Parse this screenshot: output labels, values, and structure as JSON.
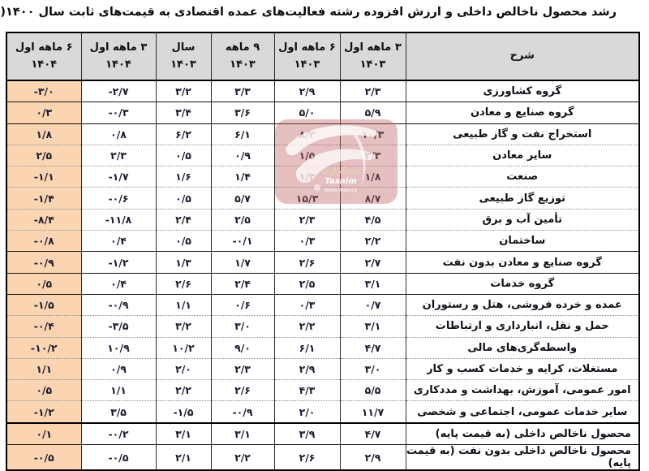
{
  "title": "رشد محصول ناخالص داخلی و ارزش افزوده رشته فعالیت‌های عمده اقتصادی به قیمت‌های ثابت سال ۱۴۰۰(درصد)",
  "table": {
    "description_header": "شرح",
    "columns": [
      {
        "line1": "۳ ماهه اول",
        "line2": "۱۴۰۳"
      },
      {
        "line1": "۶ ماهه اول",
        "line2": "۱۴۰۳"
      },
      {
        "line1": "۹ ماهه",
        "line2": "۱۴۰۳"
      },
      {
        "line1": "سال",
        "line2": "۱۴۰۳"
      },
      {
        "line1": "۳ ماهه اول",
        "line2": "۱۴۰۴"
      },
      {
        "line1": "۶ ماهه اول",
        "line2": "۱۴۰۴"
      }
    ],
    "header_bg": "#d9d9d9",
    "highlight_color": "#fbd5b2",
    "rows": [
      {
        "label": "گروه کشاورزی",
        "values": [
          "۲/۳",
          "۲/۹",
          "۳/۳",
          "۳/۲",
          "-۲/۷",
          "-۳/۰"
        ],
        "divider": "solid",
        "align": "center"
      },
      {
        "label": "گروه صنایع و معادن",
        "values": [
          "۵/۹",
          "۵/۰",
          "۳/۶",
          "۳/۴",
          "-۰/۳",
          "۰/۳"
        ],
        "divider": "solid",
        "align": "center"
      },
      {
        "label": "استخراج نفت و گاز طبیعی",
        "values": [
          "۱۰/۳",
          "۸/۲",
          "۶/۱",
          "۶/۲",
          "۰/۸",
          "۱/۸"
        ],
        "divider": "solid",
        "align": "center"
      },
      {
        "label": "سایر معادن",
        "values": [
          "۲/۳",
          "۱/۵",
          "۰/۹",
          "۰/۵",
          "۲/۳",
          "۲/۵"
        ],
        "divider": "dotted",
        "align": "center"
      },
      {
        "label": "صنعت",
        "values": [
          "۱/۸",
          "۱/۳",
          "۱/۴",
          "۱/۶",
          "-۱/۷",
          "-۱/۱"
        ],
        "divider": "dotted",
        "align": "center"
      },
      {
        "label": "توزیع گاز طبیعی",
        "values": [
          "۸/۷",
          "۱۵/۳",
          "۵/۷",
          "۰/۵",
          "-۰/۶",
          "-۱/۴"
        ],
        "divider": "dotted",
        "align": "center"
      },
      {
        "label": "تأمین آب و برق",
        "values": [
          "۴/۵",
          "۲/۳",
          "۲/۵",
          "۲/۴",
          "-۱۱/۸",
          "-۸/۴"
        ],
        "divider": "dotted",
        "align": "center"
      },
      {
        "label": "ساختمان",
        "values": [
          "۲/۲",
          "۰/۳",
          "-۰/۱",
          "۰/۵",
          "۰/۴",
          "-۰/۸"
        ],
        "divider": "dotted",
        "align": "center"
      },
      {
        "label": "گروه صنایع و معادن بدون نفت",
        "values": [
          "۲/۷",
          "۲/۶",
          "۱/۷",
          "۱/۳",
          "-۱/۲",
          "-۰/۹"
        ],
        "divider": "solid",
        "align": "center"
      },
      {
        "label": "گروه خدمات",
        "values": [
          "۳/۱",
          "۲/۵",
          "۲/۴",
          "۲/۶",
          "۰/۴",
          "۰/۵"
        ],
        "divider": "solid",
        "align": "center"
      },
      {
        "label": "عمده و خرده فروشی، هتل و رستوران",
        "values": [
          "۰/۷",
          "۰/۳",
          "۰/۶",
          "۱/۱",
          "-۰/۹",
          "-۱/۵"
        ],
        "divider": "solid",
        "align": "center"
      },
      {
        "label": "حمل و نقل، انبارداری و ارتباطات",
        "values": [
          "۳/۱",
          "۲/۲",
          "۳/۰",
          "۳/۲",
          "-۳/۵",
          "-۰/۴"
        ],
        "divider": "dotted",
        "align": "center"
      },
      {
        "label": "واسطه‌گری‌های مالی",
        "values": [
          "۴/۷",
          "۶/۱",
          "۹/۰",
          "۱۰/۲",
          "۱۰/۹",
          "-۱۰/۲"
        ],
        "divider": "dotted",
        "align": "center"
      },
      {
        "label": "مستغلات، کرایه و خدمات کسب و کار",
        "values": [
          "۳/۰",
          "۲/۹",
          "۲/۳",
          "۲/۰",
          "۰/۹",
          "۱/۱"
        ],
        "divider": "dotted",
        "align": "center"
      },
      {
        "label": "امور عمومی، آموزش، بهداشت و مددکاری",
        "values": [
          "۵/۵",
          "۴/۳",
          "۲/۶",
          "۲/۲",
          "۱/۱",
          "۰/۵"
        ],
        "divider": "dotted",
        "align": "center"
      },
      {
        "label": "سایر خدمات عمومی، اجتماعی و شخصی",
        "values": [
          "۱۱/۷",
          "۲/۰",
          "-۰/۹",
          "-۱/۵",
          "۳/۵",
          "-۱/۲"
        ],
        "divider": "dotted",
        "align": "center"
      },
      {
        "label": "محصول ناخالص داخلی (به قیمت پایه)",
        "values": [
          "۴/۷",
          "۳/۹",
          "۳/۱",
          "۳/۱",
          "-۰/۲",
          "۰/۱"
        ],
        "divider": "thick",
        "align": "right"
      },
      {
        "label": "محصول ناخالص داخلی بدون نفت (به قیمت پایه)",
        "values": [
          "۲/۹",
          "۲/۶",
          "۲/۲",
          "۲/۱",
          "-۰/۵",
          "-۰/۵"
        ],
        "divider": "solid",
        "align": "right"
      }
    ]
  },
  "watermark": {
    "agency_fa": "خبرگزاری",
    "agency_en_1": "Tasnim",
    "agency_en_2": "News Agency",
    "badge_color": "rgba(196,106,106,0.42)",
    "text_gold": "#e3d3ac",
    "text_white": "#ffffff"
  },
  "chart_data": {
    "type": "table",
    "title": "رشد محصول ناخالص داخلی و ارزش افزوده رشته فعالیت‌های عمده اقتصادی به قیمت‌های ثابت سال ۱۴۰۰(درصد)",
    "unit": "درصد (percent)",
    "columns": [
      "۳ ماهه اول ۱۴۰۳",
      "۶ ماهه اول ۱۴۰۳",
      "۹ ماهه ۱۴۰۳",
      "سال ۱۴۰۳",
      "۳ ماهه اول ۱۴۰۴",
      "۶ ماهه اول ۱۴۰۴"
    ],
    "categories": [
      "گروه کشاورزی",
      "گروه صنایع و معادن",
      "استخراج نفت و گاز طبیعی",
      "سایر معادن",
      "صنعت",
      "توزیع گاز طبیعی",
      "تأمین آب و برق",
      "ساختمان",
      "گروه صنایع و معادن بدون نفت",
      "گروه خدمات",
      "عمده و خرده فروشی، هتل و رستوران",
      "حمل و نقل، انبارداری و ارتباطات",
      "واسطه‌گری‌های مالی",
      "مستغلات، کرایه و خدمات کسب و کار",
      "امور عمومی، آموزش، بهداشت و مددکاری",
      "سایر خدمات عمومی، اجتماعی و شخصی",
      "محصول ناخالص داخلی (به قیمت پایه)",
      "محصول ناخالص داخلی بدون نفت (به قیمت پایه)"
    ],
    "values": [
      [
        2.3,
        2.9,
        3.3,
        3.2,
        -2.7,
        -3.0
      ],
      [
        5.9,
        5.0,
        3.6,
        3.4,
        -0.3,
        0.3
      ],
      [
        10.3,
        8.2,
        6.1,
        6.2,
        0.8,
        1.8
      ],
      [
        2.3,
        1.5,
        0.9,
        0.5,
        2.3,
        2.5
      ],
      [
        1.8,
        1.3,
        1.4,
        1.6,
        -1.7,
        -1.1
      ],
      [
        8.7,
        15.3,
        5.7,
        0.5,
        -0.6,
        -1.4
      ],
      [
        4.5,
        2.3,
        2.5,
        2.4,
        -11.8,
        -8.4
      ],
      [
        2.2,
        0.3,
        -0.1,
        0.5,
        0.4,
        -0.8
      ],
      [
        2.7,
        2.6,
        1.7,
        1.3,
        -1.2,
        -0.9
      ],
      [
        3.1,
        2.5,
        2.4,
        2.6,
        0.4,
        0.5
      ],
      [
        0.7,
        0.3,
        0.6,
        1.1,
        -0.9,
        -1.5
      ],
      [
        3.1,
        2.2,
        3.0,
        3.2,
        -3.5,
        -0.4
      ],
      [
        4.7,
        6.1,
        9.0,
        10.2,
        10.9,
        -10.2
      ],
      [
        3.0,
        2.9,
        2.3,
        2.0,
        0.9,
        1.1
      ],
      [
        5.5,
        4.3,
        2.6,
        2.2,
        1.1,
        0.5
      ],
      [
        11.7,
        2.0,
        -0.9,
        -1.5,
        3.5,
        -1.2
      ],
      [
        4.7,
        3.9,
        3.1,
        3.1,
        -0.2,
        0.1
      ],
      [
        2.9,
        2.6,
        2.2,
        2.1,
        -0.5,
        -0.5
      ]
    ]
  }
}
